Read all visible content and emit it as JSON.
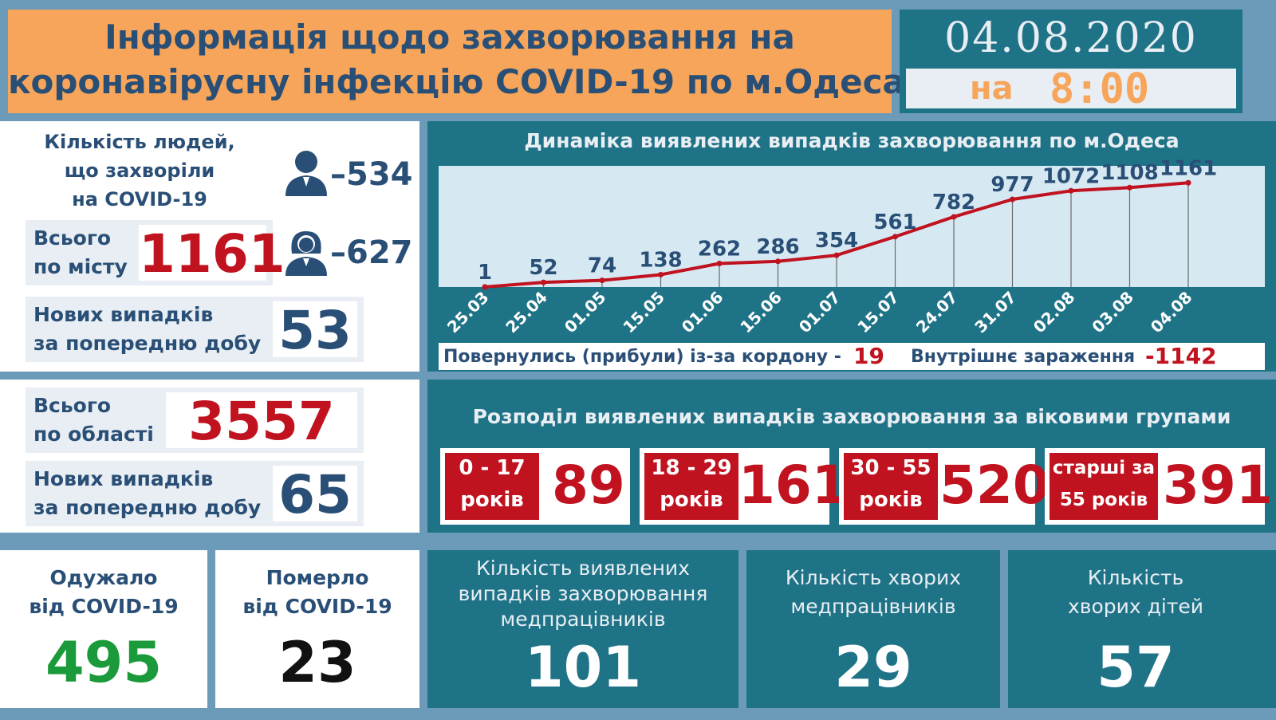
{
  "header": {
    "title_line1": "Інформація щодо захворювання на",
    "title_line2": "коронавірусну інфекцію COVID-19 по м.Одеса",
    "date": "04.08.2020",
    "time_prefix": "на",
    "time": "8:00"
  },
  "city": {
    "people_label_line1": "Кількість людей,",
    "people_label_line2": "що захворіли",
    "people_label_line3": "на COVID-19",
    "male_value": "–534",
    "female_value": "–627",
    "total_label_line1": "Всього",
    "total_label_line2": "по місту",
    "total_value": "1161",
    "new_label_line1": "Нових випадків",
    "new_label_line2": "за попередню добу",
    "new_value": "53",
    "male_icon": "male-user-icon",
    "female_icon": "female-user-icon"
  },
  "chart_data": {
    "type": "line",
    "title": "Динаміка виявлених випадків захворювання по м.Одеса",
    "categories": [
      "25.03",
      "25.04",
      "01.05",
      "15.05",
      "01.06",
      "15.06",
      "01.07",
      "15.07",
      "24.07",
      "31.07",
      "02.08",
      "03.08",
      "04.08"
    ],
    "values": [
      1,
      52,
      74,
      138,
      262,
      286,
      354,
      561,
      782,
      977,
      1072,
      1108,
      1161
    ],
    "ylim": [
      0,
      1350
    ],
    "grid": false,
    "line_color": "#c0121f"
  },
  "sources": {
    "returned_label": "Повернулись (прибули) із-за кордону -",
    "returned_value": "19",
    "internal_label": "Внутрішнє зараження",
    "internal_value": "-1142"
  },
  "region": {
    "total_label_line1": "Всього",
    "total_label_line2": "по області",
    "total_value": "3557",
    "new_label_line1": "Нових випадків",
    "new_label_line2": "за попередню добу",
    "new_value": "65"
  },
  "age_groups": {
    "title": "Розподіл виявлених випадків захворювання за віковими групами",
    "groups": [
      {
        "label_line1": "0 - 17",
        "label_line2": "років",
        "value": "89"
      },
      {
        "label_line1": "18 - 29",
        "label_line2": "років",
        "value": "161"
      },
      {
        "label_line1": "30 - 55",
        "label_line2": "років",
        "value": "520"
      },
      {
        "label_line1": "старші за",
        "label_line2": "55 років",
        "value": "391"
      }
    ]
  },
  "outcomes": {
    "recovered_label_line1": "Одужало",
    "recovered_label_line2": "від COVID-19",
    "recovered_value": "495",
    "died_label_line1": "Померло",
    "died_label_line2": "від COVID-19",
    "died_value": "23"
  },
  "medical": {
    "cases_label_line1": "Кількість виявлених",
    "cases_label_line2": "випадків захворювання",
    "cases_label_line3": "медпрацівників",
    "cases_value": "101",
    "sick_label_line1": "Кількість хворих",
    "sick_label_line2": "медпрацівників",
    "sick_value": "29",
    "children_label_line1": "Кількість",
    "children_label_line2": "хворих дітей",
    "children_value": "57"
  },
  "colors": {
    "header_orange": "#f6a55a",
    "teal": "#1f7387",
    "navy": "#2a4f76",
    "red": "#c0121f",
    "green": "#1a9a3a"
  }
}
